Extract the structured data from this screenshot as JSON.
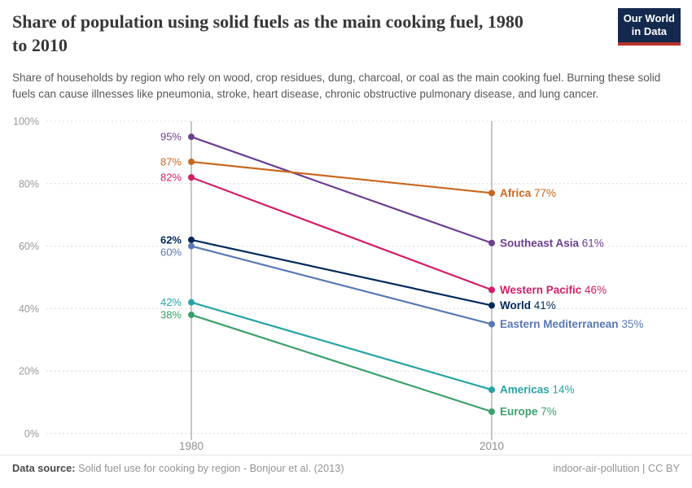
{
  "header": {
    "title": "Share of population using solid fuels as the main cooking fuel, 1980 to 2010",
    "title_lines": [
      "Share of population using solid fuels as the main cooking fuel, 1980",
      "to 2010"
    ],
    "subtitle": "Share of households by region who rely on wood, crop residues, dung, charcoal, or coal as the main cooking fuel. Burning these solid fuels can cause illnesses like pneumonia, stroke, heart disease, chronic obstructive pulmonary disease, and lung cancer.",
    "logo": {
      "line1": "Our World",
      "line2": "in Data",
      "bg_color": "#13294d",
      "bar_color": "#b9332b",
      "text_color": "#ffffff"
    }
  },
  "chart_data": {
    "type": "line",
    "subtype": "slope-chart",
    "x": [
      1980,
      2010
    ],
    "x_tick_labels": [
      "1980",
      "2010"
    ],
    "ylim": [
      0,
      100
    ],
    "y_ticks": [
      0,
      20,
      40,
      60,
      80,
      100
    ],
    "y_tick_labels": [
      "0%",
      "20%",
      "40%",
      "60%",
      "80%",
      "100%"
    ],
    "grid": "horizontal dashed",
    "legend_position": "end-of-line labels",
    "series": [
      {
        "name": "Southeast Asia",
        "values": [
          95,
          61
        ],
        "color": "#6d3e91",
        "bold": false
      },
      {
        "name": "Africa",
        "values": [
          87,
          77
        ],
        "color": "#c9671f",
        "bold": false
      },
      {
        "name": "Western Pacific",
        "values": [
          82,
          46
        ],
        "color": "#d21e66",
        "bold": false
      },
      {
        "name": "World",
        "values": [
          62,
          41
        ],
        "color": "#00295b",
        "bold": true
      },
      {
        "name": "Eastern Mediterranean",
        "values": [
          60,
          35
        ],
        "color": "#5878b3",
        "bold": false
      },
      {
        "name": "Americas",
        "values": [
          42,
          14
        ],
        "color": "#27a3a5",
        "bold": false
      },
      {
        "name": "Europe",
        "values": [
          38,
          7
        ],
        "color": "#3aa06c",
        "bold": false
      }
    ],
    "value_suffix": "%",
    "colors": {
      "gridline": "#dcdcdc",
      "year_line": "#c6c6c6",
      "axis_text": "#999999",
      "x_tick_text": "#8e8e8e"
    }
  },
  "footer": {
    "source_label": "Data source:",
    "source_text": " Solid fuel use for cooking by region - Bonjour et al. (2013)",
    "note_right": "indoor-air-pollution | CC BY"
  }
}
